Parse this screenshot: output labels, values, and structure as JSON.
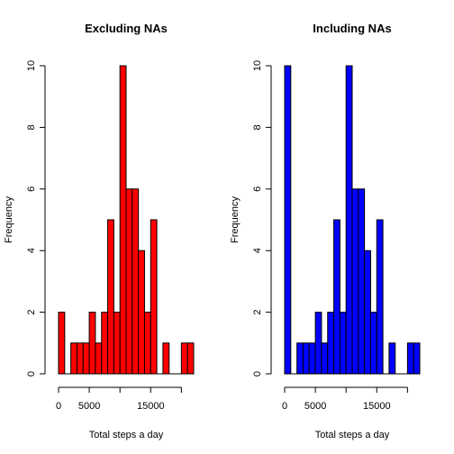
{
  "chart_data": [
    {
      "type": "bar",
      "title": "Excluding NAs",
      "xlabel": "Total steps a day",
      "ylabel": "Frequency",
      "fill_color": "#ff0000",
      "bin_width": 1000,
      "x_start": 0,
      "xlim": [
        0,
        22000
      ],
      "ylim": [
        0,
        10
      ],
      "x_ticks": [
        0,
        5000,
        10000,
        15000,
        20000
      ],
      "x_tick_labels": [
        "0",
        "5000",
        "",
        "15000",
        ""
      ],
      "y_ticks": [
        0,
        2,
        4,
        6,
        8,
        10
      ],
      "values": [
        2,
        0,
        1,
        1,
        1,
        2,
        1,
        2,
        5,
        2,
        10,
        6,
        6,
        4,
        2,
        5,
        0,
        1,
        0,
        0,
        1,
        1
      ]
    },
    {
      "type": "bar",
      "title": "Including NAs",
      "xlabel": "Total steps a day",
      "ylabel": "Frequency",
      "fill_color": "#0000ff",
      "bin_width": 1000,
      "x_start": 0,
      "xlim": [
        0,
        22000
      ],
      "ylim": [
        0,
        10
      ],
      "x_ticks": [
        0,
        5000,
        10000,
        15000,
        20000
      ],
      "x_tick_labels": [
        "0",
        "5000",
        "",
        "15000",
        ""
      ],
      "y_ticks": [
        0,
        2,
        4,
        6,
        8,
        10
      ],
      "values": [
        10,
        0,
        1,
        1,
        1,
        2,
        1,
        2,
        5,
        2,
        10,
        6,
        6,
        4,
        2,
        5,
        0,
        1,
        0,
        0,
        1,
        1
      ]
    }
  ]
}
